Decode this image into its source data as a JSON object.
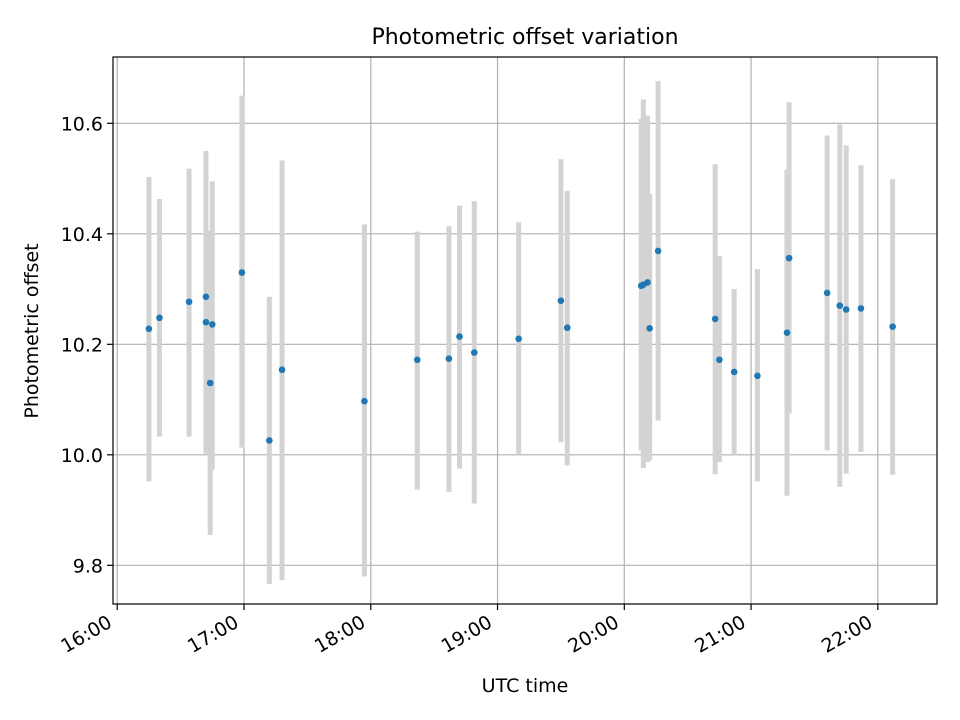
{
  "chart_data": {
    "type": "scatter",
    "title": "Photometric offset variation",
    "xlabel": "UTC time",
    "ylabel": "Photometric offset",
    "x_ticks": [
      "16:00",
      "17:00",
      "18:00",
      "19:00",
      "20:00",
      "21:00",
      "22:00"
    ],
    "y_ticks": [
      "9.8",
      "10.0",
      "10.2",
      "10.4",
      "10.6"
    ],
    "xlim": [
      "15:58",
      "22:28"
    ],
    "ylim": [
      9.73,
      10.72
    ],
    "grid": true,
    "errorbar_color": "#d3d3d3",
    "marker_color": "#1f77b4",
    "points": [
      {
        "t": "16:15",
        "y": 10.228,
        "lo": 9.952,
        "hi": 10.503
      },
      {
        "t": "16:20",
        "y": 10.248,
        "lo": 10.033,
        "hi": 10.463
      },
      {
        "t": "16:34",
        "y": 10.277,
        "lo": 10.033,
        "hi": 10.518
      },
      {
        "t": "16:42",
        "y": 10.286,
        "lo": 10.023,
        "hi": 10.55
      },
      {
        "t": "16:42",
        "y": 10.24,
        "lo": 10.002,
        "hi": 10.478
      },
      {
        "t": "16:44",
        "y": 10.13,
        "lo": 9.855,
        "hi": 10.405
      },
      {
        "t": "16:45",
        "y": 10.236,
        "lo": 9.973,
        "hi": 10.495
      },
      {
        "t": "16:59",
        "y": 10.33,
        "lo": 10.013,
        "hi": 10.65
      },
      {
        "t": "17:12",
        "y": 10.026,
        "lo": 9.766,
        "hi": 10.286
      },
      {
        "t": "17:18",
        "y": 10.154,
        "lo": 9.773,
        "hi": 10.533
      },
      {
        "t": "17:57",
        "y": 10.097,
        "lo": 9.78,
        "hi": 10.417
      },
      {
        "t": "18:22",
        "y": 10.172,
        "lo": 9.937,
        "hi": 10.404
      },
      {
        "t": "18:37",
        "y": 10.174,
        "lo": 9.933,
        "hi": 10.414
      },
      {
        "t": "18:42",
        "y": 10.214,
        "lo": 9.975,
        "hi": 10.451
      },
      {
        "t": "18:49",
        "y": 10.185,
        "lo": 9.912,
        "hi": 10.459
      },
      {
        "t": "19:10",
        "y": 10.21,
        "lo": 10.0,
        "hi": 10.421
      },
      {
        "t": "19:30",
        "y": 10.279,
        "lo": 10.023,
        "hi": 10.535
      },
      {
        "t": "19:33",
        "y": 10.23,
        "lo": 9.981,
        "hi": 10.478
      },
      {
        "t": "20:08",
        "y": 10.306,
        "lo": 10.008,
        "hi": 10.608
      },
      {
        "t": "20:09",
        "y": 10.308,
        "lo": 9.976,
        "hi": 10.643
      },
      {
        "t": "20:11",
        "y": 10.312,
        "lo": 9.987,
        "hi": 10.614
      },
      {
        "t": "20:12",
        "y": 10.229,
        "lo": 9.99,
        "hi": 10.472
      },
      {
        "t": "20:16",
        "y": 10.369,
        "lo": 10.062,
        "hi": 10.676
      },
      {
        "t": "20:43",
        "y": 10.246,
        "lo": 9.965,
        "hi": 10.526
      },
      {
        "t": "20:45",
        "y": 10.172,
        "lo": 9.987,
        "hi": 10.36
      },
      {
        "t": "20:52",
        "y": 10.15,
        "lo": 10.0,
        "hi": 10.3
      },
      {
        "t": "21:03",
        "y": 10.143,
        "lo": 9.952,
        "hi": 10.336
      },
      {
        "t": "21:17",
        "y": 10.221,
        "lo": 9.926,
        "hi": 10.516
      },
      {
        "t": "21:18",
        "y": 10.356,
        "lo": 10.075,
        "hi": 10.638
      },
      {
        "t": "21:36",
        "y": 10.293,
        "lo": 10.008,
        "hi": 10.578
      },
      {
        "t": "21:42",
        "y": 10.27,
        "lo": 9.942,
        "hi": 10.598
      },
      {
        "t": "21:45",
        "y": 10.263,
        "lo": 9.966,
        "hi": 10.56
      },
      {
        "t": "21:52",
        "y": 10.265,
        "lo": 10.005,
        "hi": 10.524
      },
      {
        "t": "22:07",
        "y": 10.232,
        "lo": 9.964,
        "hi": 10.499
      }
    ]
  }
}
